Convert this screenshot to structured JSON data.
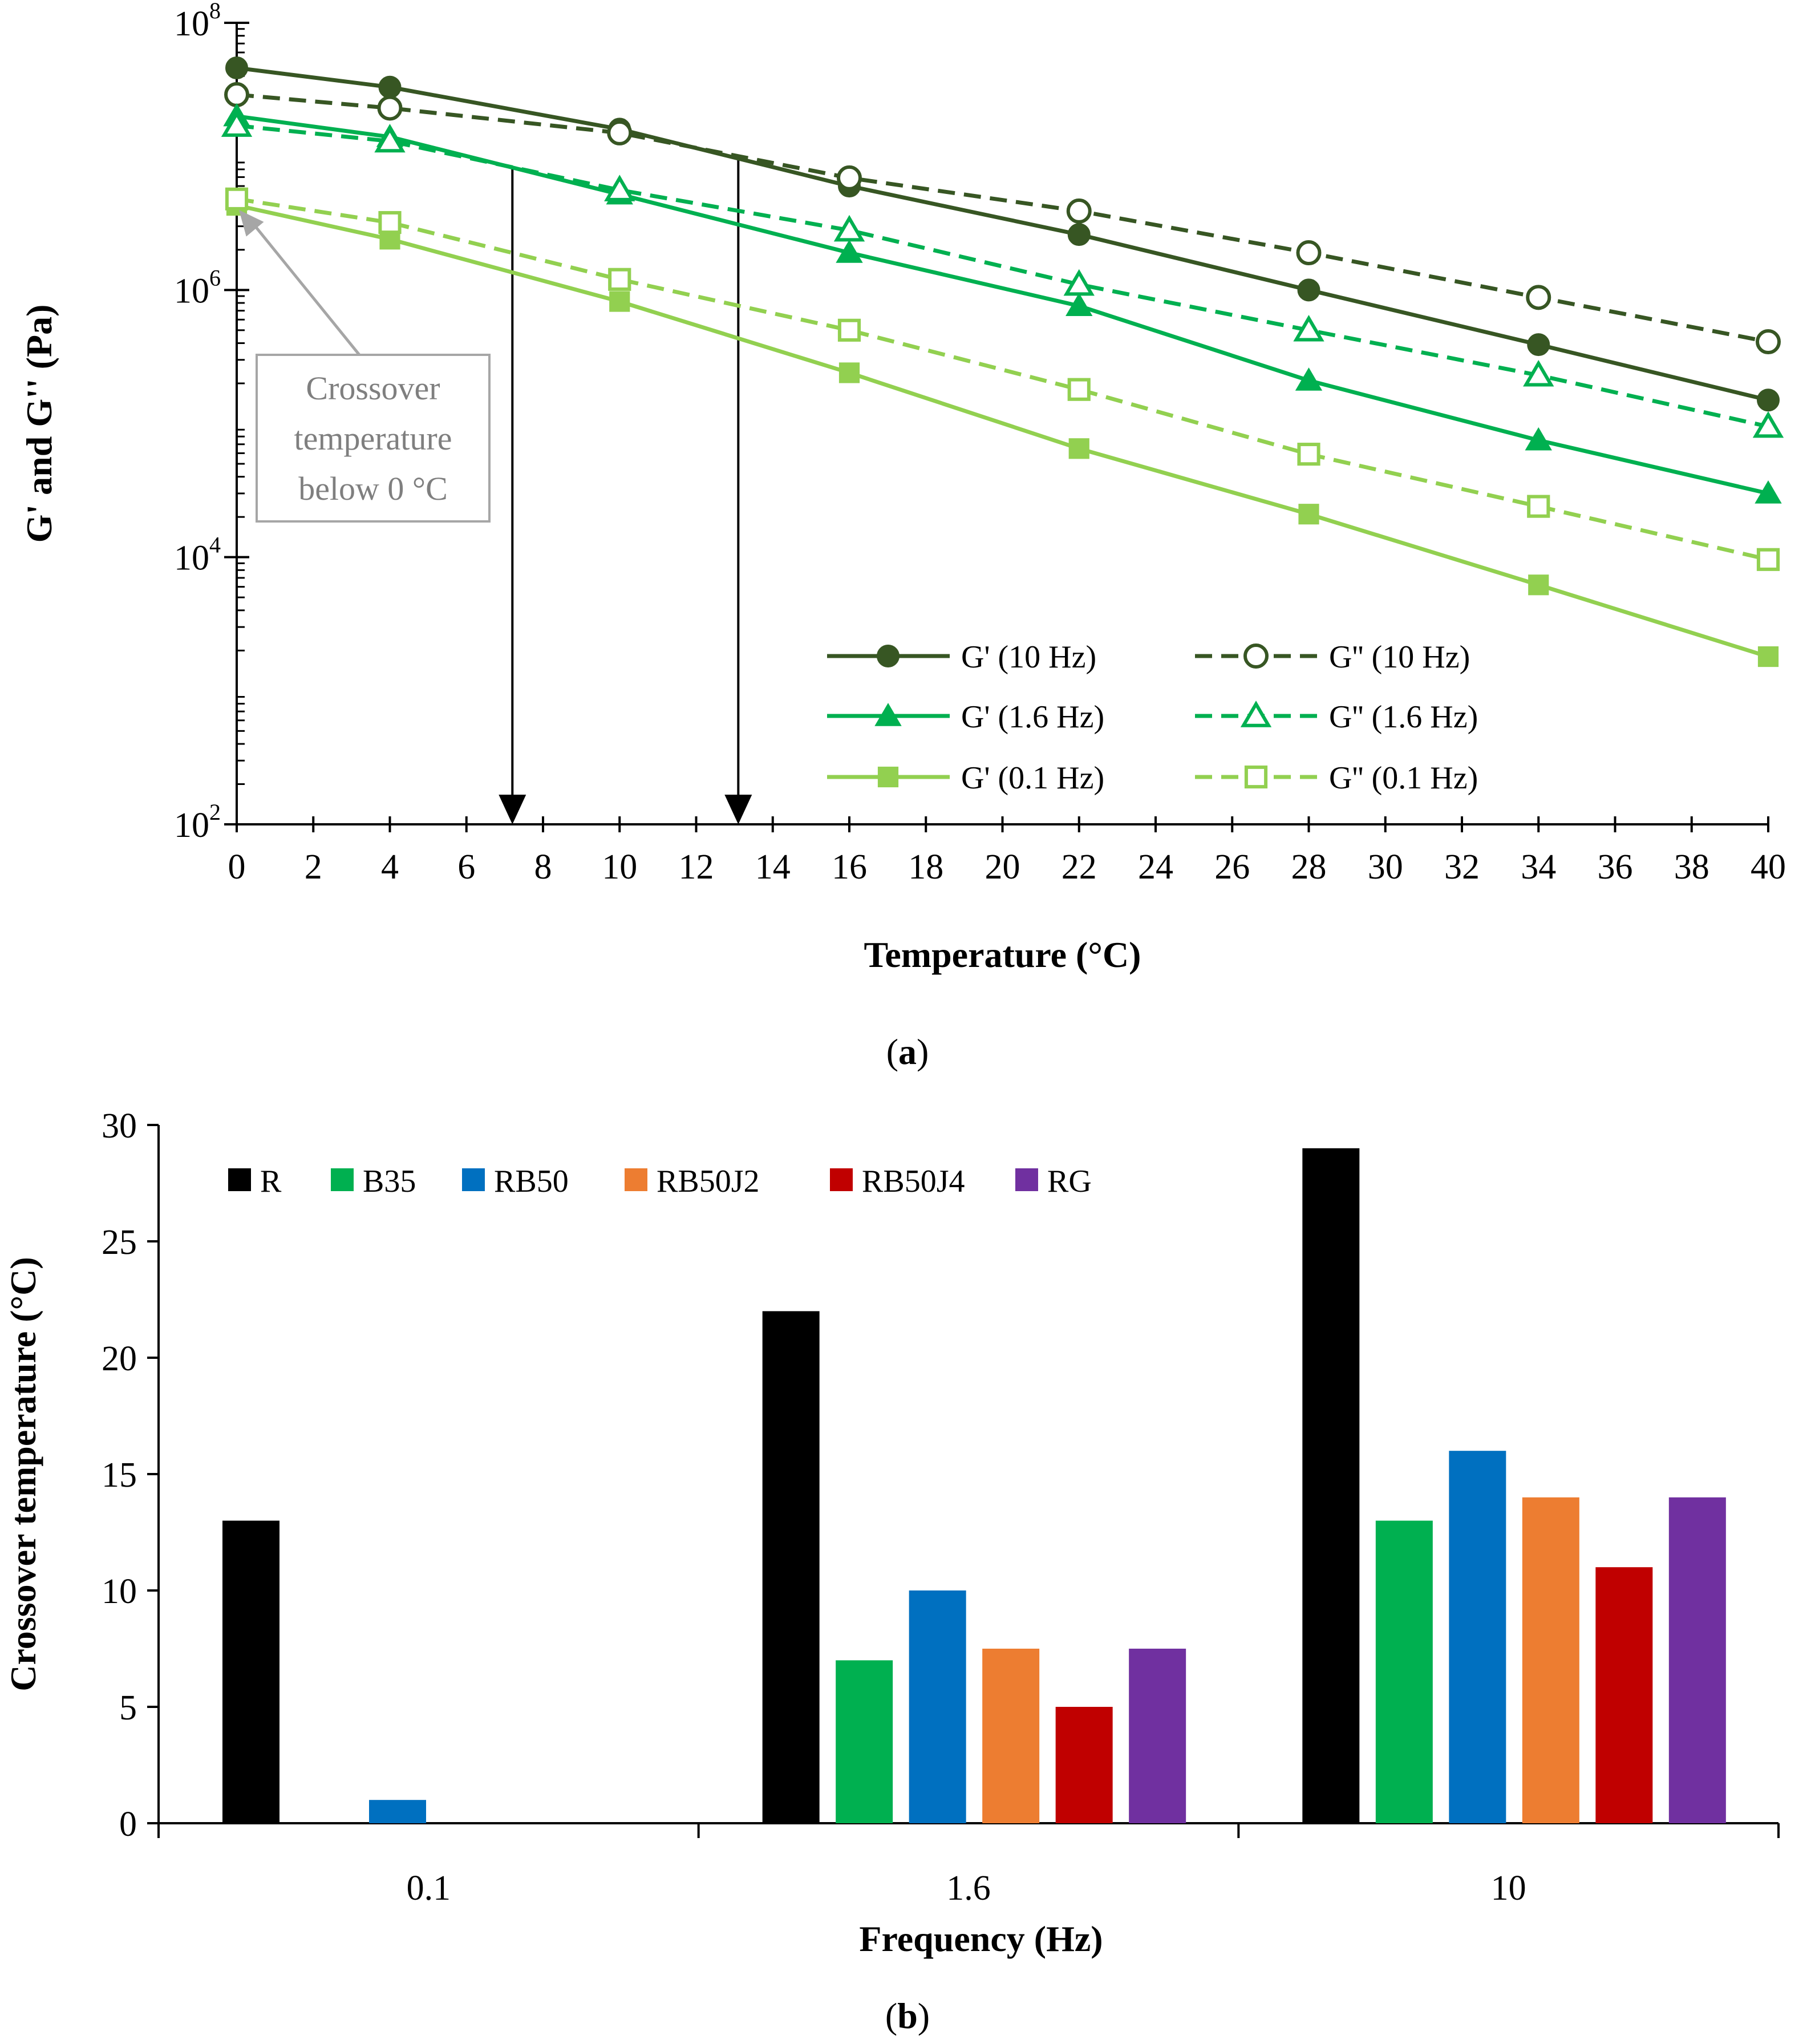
{
  "chart_data": [
    {
      "type": "line",
      "panel_label": "a",
      "caption_left": "(",
      "caption_right": ")",
      "xlabel": "Temperature (°C)",
      "ylabel": "G' and G'' (Pa)",
      "y_scale": "log",
      "ylim": [
        100,
        100000000
      ],
      "xlim": [
        0,
        40
      ],
      "x_ticks": [
        0,
        2,
        4,
        6,
        8,
        10,
        12,
        14,
        16,
        18,
        20,
        22,
        24,
        26,
        28,
        30,
        32,
        34,
        36,
        38,
        40
      ],
      "y_ticks": [
        {
          "value": 100,
          "base": "10",
          "exp": "2"
        },
        {
          "value": 10000,
          "base": "10",
          "exp": "4"
        },
        {
          "value": 1000000,
          "base": "10",
          "exp": "6"
        },
        {
          "value": 100000000,
          "base": "10",
          "exp": "8"
        }
      ],
      "x": [
        0,
        4,
        10,
        16,
        22,
        28,
        34,
        40
      ],
      "series": [
        {
          "name": "G' (10 Hz)",
          "color": "#375623",
          "dash": false,
          "marker": "circle",
          "filled": true,
          "values": [
            46000000,
            33000000,
            16000000,
            6000000,
            2600000,
            1000000,
            390000,
            150000
          ]
        },
        {
          "name": "G'' (10 Hz)",
          "color": "#375623",
          "dash": true,
          "marker": "circle",
          "filled": false,
          "values": [
            29000000,
            23000000,
            15000000,
            6900000,
            3900000,
            1900000,
            880000,
            410000
          ]
        },
        {
          "name": "G' (1.6 Hz)",
          "color": "#00b050",
          "dash": false,
          "marker": "triangle",
          "filled": true,
          "values": [
            20000000,
            14000000,
            5200000,
            1900000,
            760000,
            210000,
            75000,
            30000
          ]
        },
        {
          "name": "G'' (1.6 Hz)",
          "color": "#00b050",
          "dash": true,
          "marker": "triangle",
          "filled": false,
          "values": [
            17000000,
            13000000,
            5600000,
            2800000,
            1100000,
            500000,
            230000,
            95000
          ]
        },
        {
          "name": "G' (0.1 Hz)",
          "color": "#92d050",
          "dash": false,
          "marker": "square",
          "filled": true,
          "values": [
            4300000,
            2400000,
            820000,
            240000,
            65000,
            21000,
            6200,
            1800
          ]
        },
        {
          "name": "G'' (0.1 Hz)",
          "color": "#92d050",
          "dash": true,
          "marker": "square",
          "filled": false,
          "values": [
            4800000,
            3200000,
            1200000,
            500000,
            180000,
            59000,
            24000,
            9600
          ]
        }
      ],
      "crossover_arrows_x": [
        7.2,
        13.1
      ],
      "annotation": {
        "lines": [
          "Crossover",
          "temperature",
          "below 0 °C"
        ],
        "points_to_x": 0,
        "color": "#a6a6a6"
      }
    },
    {
      "type": "bar",
      "panel_label": "b",
      "caption_left": "(",
      "caption_right": ")",
      "xlabel": "Frequency (Hz)",
      "ylabel": "Crossover temperature (°C)",
      "categories": [
        "0.1",
        "1.6",
        "10"
      ],
      "ylim": [
        0,
        30
      ],
      "y_ticks": [
        0,
        5,
        10,
        15,
        20,
        25,
        30
      ],
      "legend_position": "top-left",
      "series": [
        {
          "name": "R",
          "color": "#000000",
          "values": [
            13,
            22,
            29
          ]
        },
        {
          "name": "B35",
          "color": "#00b050",
          "values": [
            0,
            7,
            13
          ]
        },
        {
          "name": "RB50",
          "color": "#0070c0",
          "values": [
            1,
            10,
            16
          ]
        },
        {
          "name": "RB50J2",
          "color": "#ed7d31",
          "values": [
            0,
            7.5,
            14
          ]
        },
        {
          "name": "RB50J4",
          "color": "#c00000",
          "values": [
            0,
            5,
            11
          ]
        },
        {
          "name": "RG",
          "color": "#7030a0",
          "values": [
            0,
            7.5,
            14
          ]
        }
      ]
    }
  ]
}
